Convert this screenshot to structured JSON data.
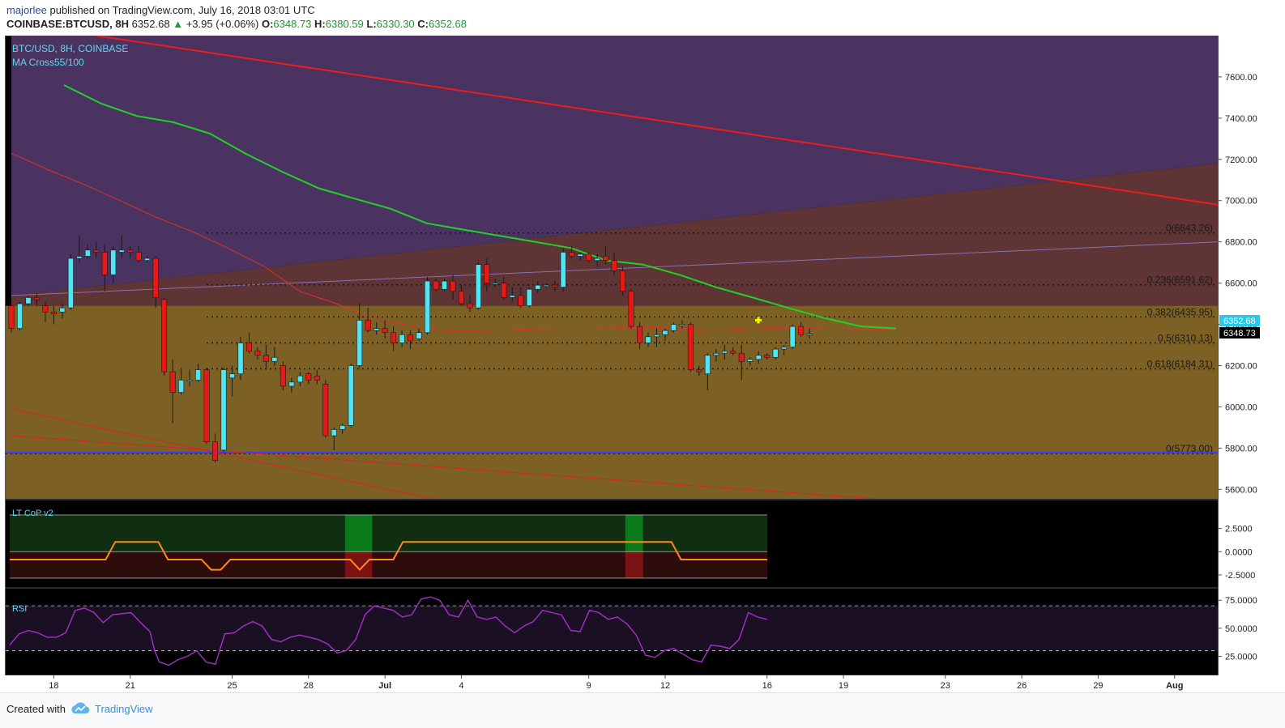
{
  "header": {
    "author": "majorlee",
    "published_text": "published on TradingView.com, July 16, 2018 03:01 UTC",
    "symbol": "COINBASE:BTCUSD, 8H",
    "last": "6352.68",
    "change": "+3.95 (+0.06%)",
    "o_label": "O:",
    "o_value": "6348.73",
    "h_label": "H:",
    "h_value": "6380.59",
    "l_label": "L:",
    "l_value": "6330.30",
    "c_label": "C:",
    "c_value": "6352.68",
    "colors": {
      "up": "#1a9b2e",
      "author": "#2a4d9b"
    }
  },
  "footer": {
    "created_with": "Created with",
    "brand": "TradingView",
    "logo_icon": "tradingview-cloud-icon"
  },
  "chart_data": [
    {
      "type": "candlestick",
      "title": "BTC/USD, 8H, COINBASE",
      "indicator_label": "MA Cross55/100",
      "ylim": [
        5550,
        7800
      ],
      "y_ticks": [
        "7600.00",
        "7400.00",
        "7200.00",
        "7000.00",
        "6800.00",
        "6600.00",
        "6400.00",
        "6200.00",
        "6000.00",
        "5800.00",
        "5600.00"
      ],
      "x_tick_labels": [
        "18",
        "21",
        "25",
        "28",
        "Jul",
        "4",
        "9",
        "12",
        "16",
        "19",
        "23",
        "26",
        "29",
        "Aug"
      ],
      "last_price_label": "6352.68",
      "open_price_label": "6348.73",
      "fib_levels": [
        {
          "label": "0(6843.26)",
          "value": 6843.26
        },
        {
          "label": "0.236(6591.62)",
          "value": 6591.62
        },
        {
          "label": "0.382(6435.95)",
          "value": 6435.95
        },
        {
          "label": "0.5(6310.13)",
          "value": 6310.13
        },
        {
          "label": "0.618(6184.31)",
          "value": 6184.31
        },
        {
          "label": "0(5773.00)",
          "value": 5773.0
        }
      ],
      "support_level": 5778,
      "candles": [
        [
          6490,
          6500,
          6360,
          6380
        ],
        [
          6380,
          6510,
          6370,
          6500
        ],
        [
          6500,
          6540,
          6490,
          6530
        ],
        [
          6530,
          6550,
          6490,
          6520
        ],
        [
          6490,
          6510,
          6410,
          6460
        ],
        [
          6460,
          6490,
          6400,
          6450
        ],
        [
          6460,
          6500,
          6430,
          6480
        ],
        [
          6480,
          6740,
          6470,
          6720
        ],
        [
          6720,
          6830,
          6700,
          6730
        ],
        [
          6730,
          6790,
          6720,
          6760
        ],
        [
          6760,
          6800,
          6720,
          6750
        ],
        [
          6750,
          6790,
          6560,
          6640
        ],
        [
          6640,
          6780,
          6600,
          6760
        ],
        [
          6750,
          6830,
          6720,
          6760
        ],
        [
          6760,
          6780,
          6720,
          6750
        ],
        [
          6750,
          6780,
          6700,
          6710
        ],
        [
          6710,
          6730,
          6700,
          6720
        ],
        [
          6720,
          6730,
          6480,
          6530
        ],
        [
          6520,
          6530,
          6150,
          6170
        ],
        [
          6170,
          6230,
          5920,
          6070
        ],
        [
          6070,
          6190,
          6060,
          6130
        ],
        [
          6130,
          6180,
          6100,
          6130
        ],
        [
          6130,
          6210,
          6120,
          6180
        ],
        [
          6180,
          6190,
          5820,
          5830
        ],
        [
          5830,
          5870,
          5730,
          5740
        ],
        [
          5790,
          6190,
          5780,
          6180
        ],
        [
          6140,
          6200,
          6050,
          6160
        ],
        [
          6160,
          6340,
          6130,
          6310
        ],
        [
          6310,
          6360,
          6260,
          6270
        ],
        [
          6270,
          6290,
          6230,
          6250
        ],
        [
          6250,
          6300,
          6180,
          6220
        ],
        [
          6220,
          6290,
          6200,
          6240
        ],
        [
          6200,
          6220,
          6080,
          6100
        ],
        [
          6100,
          6140,
          6070,
          6120
        ],
        [
          6120,
          6170,
          6100,
          6150
        ],
        [
          6160,
          6170,
          6110,
          6130
        ],
        [
          6150,
          6180,
          6110,
          6130
        ],
        [
          6110,
          6130,
          5850,
          5860
        ],
        [
          5860,
          5900,
          5790,
          5890
        ],
        [
          5890,
          5920,
          5870,
          5910
        ],
        [
          5910,
          6210,
          5900,
          6200
        ],
        [
          6200,
          6500,
          6190,
          6420
        ],
        [
          6420,
          6480,
          6360,
          6370
        ],
        [
          6370,
          6410,
          6350,
          6380
        ],
        [
          6380,
          6420,
          6330,
          6360
        ],
        [
          6360,
          6390,
          6270,
          6310
        ],
        [
          6310,
          6370,
          6290,
          6350
        ],
        [
          6350,
          6370,
          6280,
          6320
        ],
        [
          6330,
          6380,
          6320,
          6360
        ],
        [
          6360,
          6630,
          6350,
          6610
        ],
        [
          6610,
          6620,
          6560,
          6570
        ],
        [
          6570,
          6620,
          6560,
          6610
        ],
        [
          6610,
          6640,
          6520,
          6560
        ],
        [
          6560,
          6590,
          6490,
          6500
        ],
        [
          6500,
          6540,
          6460,
          6480
        ],
        [
          6480,
          6700,
          6470,
          6690
        ],
        [
          6690,
          6720,
          6560,
          6600
        ],
        [
          6600,
          6620,
          6580,
          6600
        ],
        [
          6600,
          6630,
          6520,
          6530
        ],
        [
          6530,
          6580,
          6510,
          6540
        ],
        [
          6540,
          6580,
          6480,
          6490
        ],
        [
          6490,
          6580,
          6480,
          6570
        ],
        [
          6570,
          6610,
          6550,
          6590
        ],
        [
          6590,
          6600,
          6580,
          6590
        ],
        [
          6590,
          6610,
          6560,
          6580
        ],
        [
          6580,
          6770,
          6560,
          6750
        ],
        [
          6750,
          6780,
          6720,
          6730
        ],
        [
          6730,
          6750,
          6710,
          6740
        ],
        [
          6740,
          6750,
          6700,
          6710
        ],
        [
          6710,
          6740,
          6680,
          6720
        ],
        [
          6730,
          6780,
          6690,
          6710
        ],
        [
          6710,
          6750,
          6640,
          6660
        ],
        [
          6660,
          6680,
          6540,
          6560
        ],
        [
          6560,
          6570,
          6380,
          6390
        ],
        [
          6390,
          6410,
          6280,
          6310
        ],
        [
          6310,
          6360,
          6290,
          6340
        ],
        [
          6340,
          6380,
          6290,
          6350
        ],
        [
          6350,
          6380,
          6320,
          6370
        ],
        [
          6370,
          6410,
          6360,
          6400
        ],
        [
          6400,
          6420,
          6380,
          6400
        ],
        [
          6400,
          6410,
          6170,
          6180
        ],
        [
          6180,
          6200,
          6150,
          6170
        ],
        [
          6160,
          6260,
          6080,
          6250
        ],
        [
          6250,
          6280,
          6220,
          6260
        ],
        [
          6260,
          6300,
          6230,
          6270
        ],
        [
          6270,
          6290,
          6250,
          6260
        ],
        [
          6260,
          6300,
          6130,
          6220
        ],
        [
          6220,
          6240,
          6200,
          6230
        ],
        [
          6230,
          6270,
          6210,
          6250
        ],
        [
          6250,
          6260,
          6230,
          6240
        ],
        [
          6240,
          6290,
          6230,
          6280
        ],
        [
          6280,
          6300,
          6250,
          6290
        ],
        [
          6290,
          6400,
          6280,
          6390
        ],
        [
          6390,
          6410,
          6340,
          6350
        ],
        [
          6348.73,
          6380.59,
          6330.3,
          6352.68
        ]
      ],
      "ma55": [
        [
          6.2,
          7560
        ],
        [
          10.6,
          7470
        ],
        [
          14.8,
          7410
        ],
        [
          19.1,
          7380
        ],
        [
          23.4,
          7325
        ],
        [
          27.7,
          7225
        ],
        [
          31.9,
          7140
        ],
        [
          36.2,
          7060
        ],
        [
          40.4,
          7010
        ],
        [
          44.7,
          6960
        ],
        [
          48.9,
          6890
        ],
        [
          53.1,
          6860
        ],
        [
          57.4,
          6830
        ],
        [
          61.7,
          6800
        ],
        [
          65.9,
          6770
        ],
        [
          70.1,
          6710
        ],
        [
          74.4,
          6690
        ],
        [
          78.7,
          6640
        ],
        [
          83,
          6580
        ],
        [
          87.3,
          6530
        ],
        [
          91.5,
          6480
        ],
        [
          95.8,
          6430
        ],
        [
          100.1,
          6390
        ],
        [
          104.2,
          6380
        ]
      ],
      "ma100": [
        [
          0,
          7230
        ],
        [
          4.3,
          7150
        ],
        [
          8.5,
          7080
        ],
        [
          12.8,
          7000
        ],
        [
          17,
          6920
        ],
        [
          21.3,
          6850
        ],
        [
          25.5,
          6770
        ],
        [
          29.8,
          6680
        ],
        [
          34,
          6560
        ],
        [
          38.3,
          6500
        ],
        [
          42.5,
          6430
        ],
        [
          46.8,
          6395
        ],
        [
          51,
          6370
        ],
        [
          55.3,
          6370
        ],
        [
          59.5,
          6375
        ],
        [
          63.8,
          6380
        ],
        [
          68,
          6380
        ],
        [
          72.3,
          6385
        ],
        [
          76.5,
          6385
        ],
        [
          80.8,
          6370
        ],
        [
          85,
          6375
        ],
        [
          89.3,
          6385
        ],
        [
          93.5,
          6385
        ],
        [
          97.8,
          6380
        ],
        [
          104.2,
          6375
        ]
      ],
      "downtrend_line": [
        [
          10,
          7800
        ],
        [
          300,
          6000
        ]
      ],
      "channel_lines": [
        [
          [
            0,
            5860
          ],
          [
            103,
            5550
          ]
        ],
        [
          [
            0,
            5990
          ],
          [
            50,
            5550
          ]
        ]
      ],
      "overlay_lines": [
        [
          [
            272,
            7800
          ],
          [
            350,
            7500
          ]
        ],
        [
          [
            240,
            7800
          ],
          [
            350,
            6960
          ]
        ],
        [
          [
            0,
            6540
          ],
          [
            350,
            7180
          ]
        ]
      ]
    },
    {
      "type": "line",
      "title": "LT CoP v2",
      "ylim": [
        -3.9,
        5.6
      ],
      "y_ticks": [
        "2.5000",
        "0.0000",
        "-2.5000"
      ],
      "band": [
        3.95,
        -2.85
      ],
      "green_bars": [
        [
          39.3,
          42.5
        ],
        [
          72.3,
          74.4
        ]
      ],
      "values": [
        [
          0,
          -0.85
        ],
        [
          20,
          -0.85
        ],
        [
          22,
          1.05
        ],
        [
          31,
          1.05
        ],
        [
          33,
          -0.85
        ],
        [
          40,
          -0.85
        ],
        [
          42,
          -1.95
        ],
        [
          44,
          -1.95
        ],
        [
          46,
          -0.85
        ],
        [
          71,
          -0.85
        ],
        [
          73,
          -1.95
        ],
        [
          75,
          -0.85
        ],
        [
          80,
          -0.85
        ],
        [
          82,
          1.05
        ],
        [
          138,
          1.05
        ],
        [
          140,
          -0.85
        ],
        [
          158,
          -0.85
        ]
      ]
    },
    {
      "type": "line",
      "title": "RSI",
      "ylim": [
        8,
        86
      ],
      "y_ticks": [
        "75.0000",
        "50.0000",
        "25.0000"
      ],
      "levels": [
        70,
        30
      ],
      "values": [
        [
          0,
          35
        ],
        [
          2,
          45
        ],
        [
          4,
          48
        ],
        [
          6,
          46
        ],
        [
          8,
          42
        ],
        [
          10,
          42
        ],
        [
          12,
          46
        ],
        [
          14,
          66
        ],
        [
          16,
          68
        ],
        [
          18,
          64
        ],
        [
          20,
          55
        ],
        [
          22,
          62
        ],
        [
          24,
          63
        ],
        [
          26,
          64
        ],
        [
          28,
          55
        ],
        [
          30,
          47
        ],
        [
          31,
          30
        ],
        [
          32,
          20
        ],
        [
          34,
          17
        ],
        [
          36,
          22
        ],
        [
          38,
          25
        ],
        [
          40,
          30
        ],
        [
          42,
          20
        ],
        [
          44,
          18
        ],
        [
          46,
          45
        ],
        [
          48,
          46
        ],
        [
          50,
          52
        ],
        [
          52,
          56
        ],
        [
          54,
          52
        ],
        [
          56,
          40
        ],
        [
          58,
          38
        ],
        [
          60,
          42
        ],
        [
          62,
          44
        ],
        [
          64,
          42
        ],
        [
          66,
          40
        ],
        [
          68,
          36
        ],
        [
          70,
          28
        ],
        [
          72,
          30
        ],
        [
          74,
          40
        ],
        [
          76,
          62
        ],
        [
          78,
          70
        ],
        [
          80,
          68
        ],
        [
          82,
          66
        ],
        [
          84,
          60
        ],
        [
          86,
          62
        ],
        [
          88,
          76
        ],
        [
          90,
          78
        ],
        [
          92,
          75
        ],
        [
          94,
          62
        ],
        [
          96,
          60
        ],
        [
          98,
          75
        ],
        [
          100,
          60
        ],
        [
          102,
          58
        ],
        [
          104,
          60
        ],
        [
          106,
          52
        ],
        [
          108,
          46
        ],
        [
          110,
          52
        ],
        [
          112,
          56
        ],
        [
          114,
          66
        ],
        [
          116,
          64
        ],
        [
          118,
          62
        ],
        [
          120,
          48
        ],
        [
          122,
          47
        ],
        [
          124,
          66
        ],
        [
          126,
          64
        ],
        [
          128,
          58
        ],
        [
          130,
          60
        ],
        [
          132,
          54
        ],
        [
          134,
          44
        ],
        [
          136,
          26
        ],
        [
          138,
          24
        ],
        [
          140,
          30
        ],
        [
          142,
          32
        ],
        [
          144,
          27
        ],
        [
          146,
          22
        ],
        [
          148,
          20
        ],
        [
          150,
          35
        ],
        [
          152,
          34
        ],
        [
          154,
          32
        ],
        [
          156,
          40
        ],
        [
          158,
          64
        ],
        [
          160,
          60
        ],
        [
          162,
          58
        ]
      ]
    }
  ]
}
